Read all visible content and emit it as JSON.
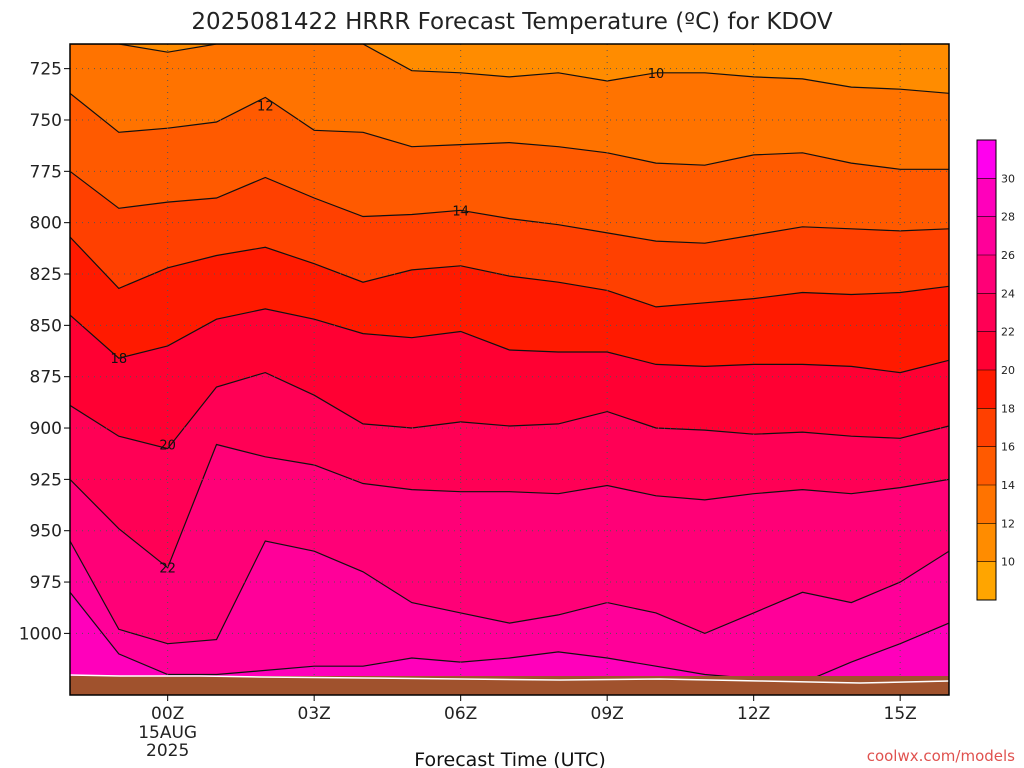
{
  "chart_data": {
    "type": "heatmap",
    "title": "2025081422 HRRR Forecast Temperature (ºC) for KDOV",
    "xlabel": "Forecast Time (UTC)",
    "ylabel": "",
    "credit": "coolwx.com/models",
    "x_range_hours": [
      -2,
      16
    ],
    "y_range_hpa": [
      713,
      1030
    ],
    "y_ticks": [
      725,
      750,
      775,
      800,
      825,
      850,
      875,
      900,
      925,
      950,
      975,
      1000
    ],
    "x_ticks": [
      {
        "hour": 0,
        "label": "00Z",
        "date_line1": "15AUG",
        "date_line2": "2025"
      },
      {
        "hour": 3,
        "label": "03Z"
      },
      {
        "hour": 6,
        "label": "06Z"
      },
      {
        "hour": 9,
        "label": "09Z"
      },
      {
        "hour": 12,
        "label": "12Z"
      },
      {
        "hour": 15,
        "label": "15Z"
      }
    ],
    "grid": true,
    "surface_color": "#a0522d",
    "colorbar": {
      "placement": "right",
      "ticks": [
        10,
        12,
        14,
        16,
        18,
        20,
        22,
        24,
        26,
        28,
        30
      ],
      "levels": [
        8,
        10,
        12,
        14,
        16,
        18,
        20,
        22,
        24,
        26,
        28,
        30,
        32
      ],
      "colors": [
        "#ffa500",
        "#ff8c00",
        "#ff7300",
        "#ff5a00",
        "#ff4000",
        "#ff1a00",
        "#ff0033",
        "#ff0055",
        "#ff0077",
        "#ff0099",
        "#ff00bb",
        "#ff00ee"
      ]
    },
    "hours": [
      -2,
      -1,
      0,
      1,
      2,
      3,
      4,
      5,
      6,
      7,
      8,
      9,
      10,
      11,
      12,
      13,
      14,
      15,
      16
    ],
    "isotherms": [
      {
        "value": 10,
        "label": "10",
        "label_at": [
          10,
          727
        ],
        "p": [
          713,
          713,
          717,
          713,
          713,
          713,
          713,
          726,
          727,
          729,
          727,
          731,
          727,
          727,
          729,
          730,
          734,
          735,
          737
        ]
      },
      {
        "value": 12,
        "label": "12",
        "label_at": [
          2,
          743
        ],
        "p": [
          737,
          756,
          754,
          751,
          739,
          755,
          756,
          763,
          762,
          761,
          763,
          766,
          771,
          772,
          767,
          766,
          771,
          774,
          774
        ]
      },
      {
        "value": 14,
        "label": "14",
        "label_at": [
          6,
          794
        ],
        "p": [
          775,
          793,
          790,
          788,
          778,
          788,
          797,
          796,
          794,
          798,
          801,
          805,
          809,
          810,
          806,
          802,
          803,
          804,
          803
        ]
      },
      {
        "value": 16,
        "label": "",
        "label_at": null,
        "p": [
          807,
          832,
          822,
          816,
          812,
          820,
          829,
          823,
          821,
          826,
          829,
          833,
          841,
          839,
          837,
          834,
          835,
          834,
          831
        ]
      },
      {
        "value": 18,
        "label": "18",
        "label_at": [
          -1,
          866
        ],
        "p": [
          845,
          866,
          860,
          847,
          842,
          847,
          854,
          856,
          853,
          862,
          863,
          863,
          869,
          870,
          869,
          869,
          870,
          873,
          867
        ]
      },
      {
        "value": 20,
        "label": "20",
        "label_at": [
          0,
          908
        ],
        "p": [
          889,
          904,
          910,
          880,
          873,
          884,
          898,
          900,
          897,
          899,
          898,
          892,
          900,
          901,
          903,
          902,
          904,
          905,
          899
        ]
      },
      {
        "value": 22,
        "label": "22",
        "label_at": [
          0,
          968
        ],
        "p": [
          925,
          949,
          968,
          908,
          914,
          918,
          927,
          930,
          931,
          931,
          932,
          928,
          933,
          935,
          932,
          930,
          932,
          929,
          925
        ]
      },
      {
        "value": 24,
        "label": "",
        "label_at": null,
        "p": [
          955,
          998,
          1005,
          1003,
          955,
          960,
          970,
          985,
          990,
          995,
          991,
          985,
          990,
          1000,
          990,
          980,
          985,
          975,
          960
        ]
      },
      {
        "value": 26,
        "label": "",
        "label_at": null,
        "p": [
          980,
          1010,
          1020,
          1020,
          1018,
          1016,
          1016,
          1012,
          1014,
          1012,
          1009,
          1012,
          1016,
          1020,
          1022,
          1024,
          1014,
          1005,
          995
        ]
      }
    ]
  }
}
